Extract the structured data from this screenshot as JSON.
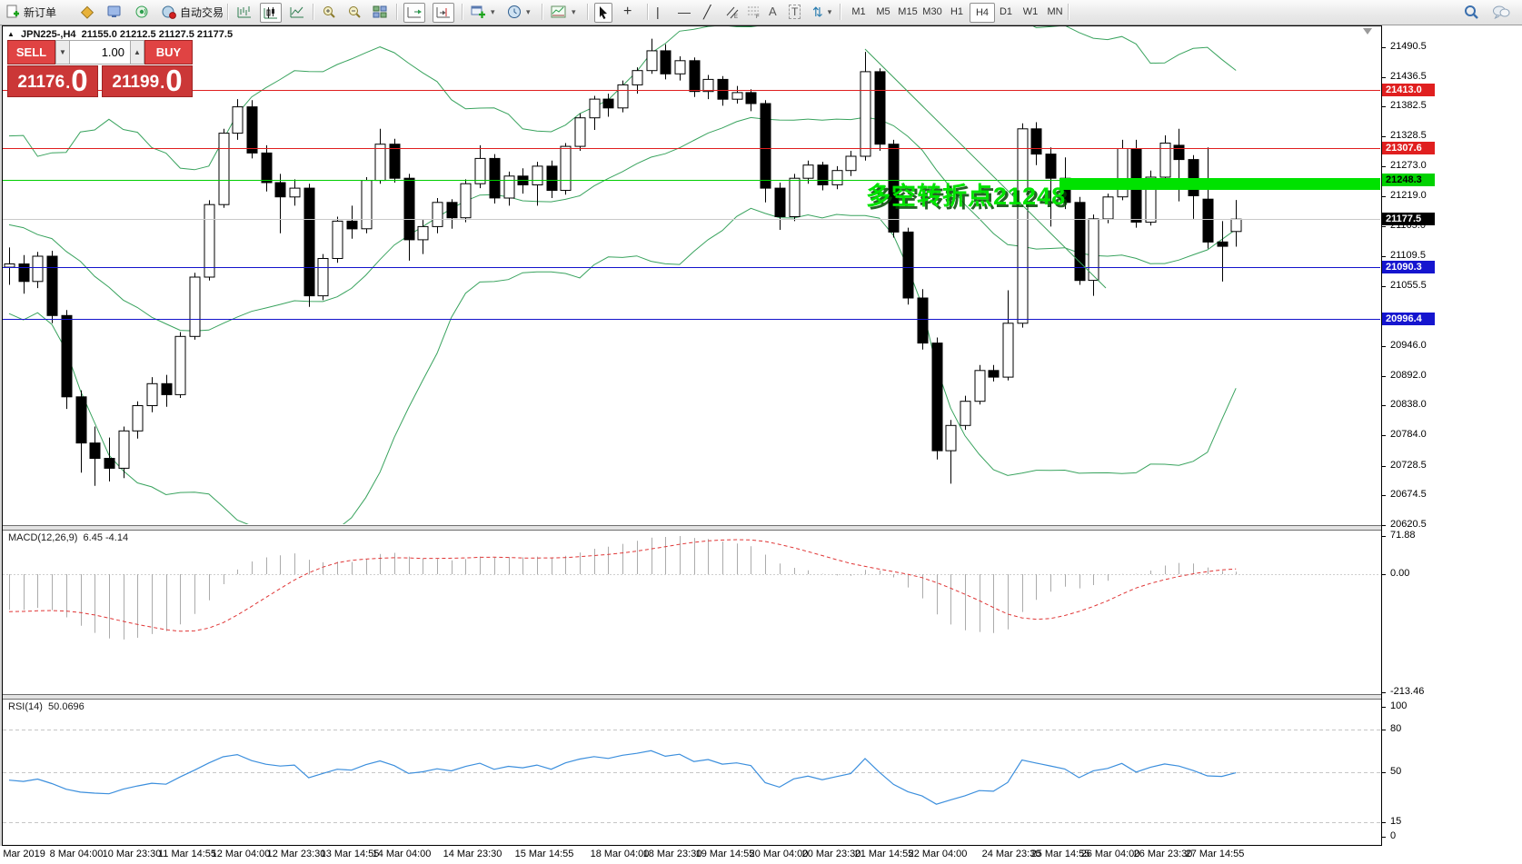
{
  "toolbar": {
    "new_order_label": "新订单",
    "autotrading_label": "自动交易",
    "timeframes": [
      "M1",
      "M5",
      "M15",
      "M30",
      "H1",
      "H4",
      "D1",
      "W1",
      "MN"
    ],
    "active_timeframe": "H4",
    "glyphs": {
      "crosshair": "+",
      "vline": "|",
      "hline": "—",
      "trendline": "╱",
      "text": "A",
      "text_label": "T",
      "arrows": "⇅",
      "caret": "▾"
    }
  },
  "trade_panel": {
    "sell_label": "SELL",
    "buy_label": "BUY",
    "volume": "1.00",
    "sell_price_main": "21176",
    "sell_price_big": "0",
    "buy_price_main": "21199",
    "buy_price_big": "0"
  },
  "chart_header": {
    "symbol": "JPN225-,H4",
    "open": "21155.0",
    "high": "21212.5",
    "low": "21127.5",
    "close": "21177.5"
  },
  "annotation": {
    "text": "多空转折点21248",
    "color": "#00e400"
  },
  "macd_panel": {
    "title": "MACD(12,26,9)",
    "values": "6.45 -4.14",
    "axis_labels": [
      "71.88",
      "0.00",
      "-213.46"
    ]
  },
  "rsi_panel": {
    "title": "RSI(14)",
    "value": "50.0696",
    "axis_labels": [
      "100",
      "80",
      "50",
      "15",
      "0"
    ]
  },
  "price_axis": {
    "ticks": [
      {
        "label": "21490.5",
        "price": 21490.5
      },
      {
        "label": "21436.5",
        "price": 21436.5
      },
      {
        "label": "21382.5",
        "price": 21382.5
      },
      {
        "label": "21328.5",
        "price": 21328.5
      },
      {
        "label": "21273.0",
        "price": 21273.0
      },
      {
        "label": "21219.0",
        "price": 21219.0
      },
      {
        "label": "21165.0",
        "price": 21165.0
      },
      {
        "label": "21109.5",
        "price": 21109.5
      },
      {
        "label": "21055.5",
        "price": 21055.5
      },
      {
        "label": "20946.0",
        "price": 20946.0
      },
      {
        "label": "20892.0",
        "price": 20892.0
      },
      {
        "label": "20838.0",
        "price": 20838.0
      },
      {
        "label": "20784.0",
        "price": 20784.0
      },
      {
        "label": "20728.5",
        "price": 20728.5
      },
      {
        "label": "20674.5",
        "price": 20674.5
      },
      {
        "label": "20620.5",
        "price": 20620.5
      }
    ],
    "badges": [
      {
        "label": "21413.0",
        "price": 21413.0,
        "bg": "#e01f1f",
        "fg": "#ffffff"
      },
      {
        "label": "21307.6",
        "price": 21307.6,
        "bg": "#e01f1f",
        "fg": "#ffffff"
      },
      {
        "label": "21248.3",
        "price": 21248.3,
        "bg": "#00d200",
        "fg": "#000000"
      },
      {
        "label": "21177.5",
        "price": 21177.5,
        "bg": "#000000",
        "fg": "#ffffff"
      },
      {
        "label": "21090.3",
        "price": 21090.3,
        "bg": "#1515cf",
        "fg": "#ffffff"
      },
      {
        "label": "20996.4",
        "price": 20996.4,
        "bg": "#1515cf",
        "fg": "#ffffff"
      }
    ]
  },
  "time_axis": {
    "labels": [
      "7 Mar 2019",
      "8 Mar 04:00",
      "10 Mar 23:30",
      "11 Mar 14:55",
      "12 Mar 04:00",
      "12 Mar 23:30",
      "13 Mar 14:55",
      "14 Mar 04:00",
      "14 Mar 23:30",
      "15 Mar 14:55",
      "18 Mar 04:00",
      "18 Mar 23:30",
      "19 Mar 14:55",
      "20 Mar 04:00",
      "20 Mar 23:30",
      "21 Mar 14:55",
      "22 Mar 04:00",
      "24 Mar 23:30",
      "25 Mar 14:55",
      "26 Mar 04:00",
      "26 Mar 23:30",
      "27 Mar 14:55"
    ]
  },
  "chart_data": {
    "type": "candlestick",
    "symbol": "JPN225-",
    "timeframe": "H4",
    "price_range": [
      20620.5,
      21490.5
    ],
    "grid": false,
    "candles": [
      [
        21090,
        21126,
        21058,
        21096
      ],
      [
        21096,
        21112,
        21042,
        21064
      ],
      [
        21064,
        21118,
        21052,
        21110
      ],
      [
        21110,
        21120,
        20988,
        21002
      ],
      [
        21002,
        21012,
        20832,
        20854
      ],
      [
        20854,
        20866,
        20716,
        20770
      ],
      [
        20770,
        20800,
        20692,
        20742
      ],
      [
        20742,
        20780,
        20700,
        20724
      ],
      [
        20724,
        20800,
        20706,
        20792
      ],
      [
        20792,
        20846,
        20778,
        20838
      ],
      [
        20838,
        20890,
        20826,
        20878
      ],
      [
        20878,
        20894,
        20836,
        20858
      ],
      [
        20858,
        20972,
        20852,
        20964
      ],
      [
        20964,
        21080,
        20958,
        21072
      ],
      [
        21072,
        21212,
        21066,
        21204
      ],
      [
        21204,
        21342,
        21198,
        21334
      ],
      [
        21334,
        21396,
        21322,
        21382
      ],
      [
        21382,
        21394,
        21288,
        21298
      ],
      [
        21298,
        21312,
        21228,
        21244
      ],
      [
        21244,
        21260,
        21152,
        21218
      ],
      [
        21218,
        21250,
        21202,
        21234
      ],
      [
        21234,
        21242,
        21018,
        21038
      ],
      [
        21038,
        21114,
        21030,
        21106
      ],
      [
        21106,
        21182,
        21098,
        21174
      ],
      [
        21174,
        21202,
        21142,
        21160
      ],
      [
        21160,
        21254,
        21152,
        21248
      ],
      [
        21248,
        21342,
        21242,
        21314
      ],
      [
        21314,
        21324,
        21244,
        21252
      ],
      [
        21252,
        21260,
        21102,
        21140
      ],
      [
        21140,
        21176,
        21114,
        21164
      ],
      [
        21164,
        21216,
        21152,
        21208
      ],
      [
        21208,
        21214,
        21160,
        21180
      ],
      [
        21180,
        21250,
        21172,
        21242
      ],
      [
        21242,
        21312,
        21234,
        21288
      ],
      [
        21288,
        21296,
        21206,
        21216
      ],
      [
        21216,
        21264,
        21202,
        21256
      ],
      [
        21256,
        21270,
        21224,
        21240
      ],
      [
        21240,
        21282,
        21202,
        21274
      ],
      [
        21274,
        21284,
        21216,
        21230
      ],
      [
        21230,
        21316,
        21222,
        21310
      ],
      [
        21310,
        21370,
        21302,
        21362
      ],
      [
        21362,
        21402,
        21340,
        21396
      ],
      [
        21396,
        21406,
        21364,
        21380
      ],
      [
        21380,
        21430,
        21372,
        21422
      ],
      [
        21422,
        21454,
        21406,
        21448
      ],
      [
        21448,
        21506,
        21442,
        21484
      ],
      [
        21484,
        21496,
        21432,
        21442
      ],
      [
        21442,
        21474,
        21430,
        21466
      ],
      [
        21466,
        21472,
        21400,
        21410
      ],
      [
        21410,
        21440,
        21396,
        21432
      ],
      [
        21432,
        21438,
        21384,
        21396
      ],
      [
        21396,
        21420,
        21388,
        21408
      ],
      [
        21408,
        21414,
        21374,
        21388
      ],
      [
        21388,
        21394,
        21208,
        21234
      ],
      [
        21234,
        21244,
        21158,
        21182
      ],
      [
        21182,
        21260,
        21174,
        21252
      ],
      [
        21252,
        21284,
        21242,
        21276
      ],
      [
        21276,
        21282,
        21230,
        21240
      ],
      [
        21240,
        21274,
        21232,
        21266
      ],
      [
        21266,
        21302,
        21256,
        21292
      ],
      [
        21292,
        21482,
        21284,
        21446
      ],
      [
        21446,
        21452,
        21302,
        21314
      ],
      [
        21314,
        21322,
        21144,
        21154
      ],
      [
        21154,
        21162,
        21022,
        21034
      ],
      [
        21034,
        21050,
        20940,
        20952
      ],
      [
        20952,
        20962,
        20740,
        20756
      ],
      [
        20756,
        20812,
        20696,
        20802
      ],
      [
        20802,
        20856,
        20794,
        20846
      ],
      [
        20846,
        20912,
        20840,
        20902
      ],
      [
        20902,
        20912,
        20882,
        20890
      ],
      [
        20890,
        21048,
        20884,
        20988
      ],
      [
        20988,
        21352,
        20980,
        21342
      ],
      [
        21342,
        21354,
        21276,
        21296
      ],
      [
        21296,
        21308,
        21164,
        21252
      ],
      [
        21252,
        21290,
        21196,
        21208
      ],
      [
        21208,
        21218,
        21058,
        21066
      ],
      [
        21066,
        21186,
        21038,
        21178
      ],
      [
        21178,
        21224,
        21170,
        21218
      ],
      [
        21218,
        21322,
        21212,
        21306
      ],
      [
        21306,
        21322,
        21162,
        21172
      ],
      [
        21172,
        21266,
        21166,
        21254
      ],
      [
        21254,
        21330,
        21236,
        21316
      ],
      [
        21312,
        21342,
        21210,
        21286
      ],
      [
        21286,
        21294,
        21178,
        21220
      ],
      [
        21214,
        21308,
        21124,
        21136
      ],
      [
        21136,
        21174,
        21064,
        21128
      ],
      [
        21155,
        21212.5,
        21127.5,
        21177.5
      ]
    ],
    "indicators": {
      "bollinger": {
        "period": 20,
        "deviation": 2,
        "color": "#39a35e"
      },
      "macd": {
        "fast": 12,
        "slow": 26,
        "signal": 9,
        "current_main": 6.45,
        "current_signal": -4.14,
        "histogram_color": "#ababab",
        "signal_color": "#e03636"
      },
      "rsi": {
        "period": 14,
        "current": 50.0696,
        "levels": [
          80,
          50,
          15
        ],
        "color": "#3c8fdd"
      }
    },
    "level_lines": [
      {
        "price": 21413.0,
        "color": "#e01f1f"
      },
      {
        "price": 21307.6,
        "color": "#e01f1f"
      },
      {
        "price": 21248.3,
        "color": "#00ce00"
      },
      {
        "price": 21177.5,
        "color": "#c9c9c9"
      },
      {
        "price": 21090.3,
        "color": "#1414cc"
      },
      {
        "price": 20996.4,
        "color": "#1414cc"
      }
    ],
    "zone_rectangle": {
      "from_index": 73.6,
      "to_right_edge": true,
      "price_top": 21253,
      "price_bottom": 21232,
      "color": "#00e200"
    },
    "trend_line": {
      "from": {
        "index": 60,
        "price": 21488
      },
      "to": {
        "index": 76.9,
        "price": 21052
      },
      "color": "#3aa05a"
    }
  }
}
